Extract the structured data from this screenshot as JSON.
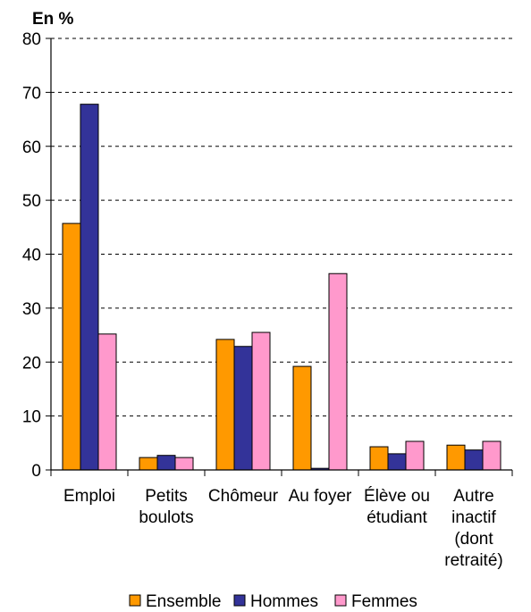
{
  "chart_data": {
    "type": "bar",
    "unit_label": "En %",
    "categories": [
      [
        "Emploi"
      ],
      [
        "Petits",
        "boulots"
      ],
      [
        "Chômeur"
      ],
      [
        "Au foyer"
      ],
      [
        "Élève ou",
        "étudiant"
      ],
      [
        "Autre",
        "inactif",
        "(dont",
        "retraité)"
      ]
    ],
    "series": [
      {
        "name": "Ensemble",
        "color": "#FF9900",
        "values": [
          45.7,
          2.3,
          24.2,
          19.2,
          4.3,
          4.6
        ]
      },
      {
        "name": "Hommes",
        "color": "#333399",
        "values": [
          67.8,
          2.7,
          22.9,
          0.3,
          3.0,
          3.7
        ]
      },
      {
        "name": "Femmes",
        "color": "#FF99CC",
        "values": [
          25.2,
          2.3,
          25.5,
          36.4,
          5.3,
          5.3
        ]
      }
    ],
    "ylim": [
      0,
      80
    ],
    "yticks": [
      0,
      10,
      20,
      30,
      40,
      50,
      60,
      70,
      80
    ],
    "grid": "horizontal-dashed",
    "legend_position": "bottom"
  }
}
